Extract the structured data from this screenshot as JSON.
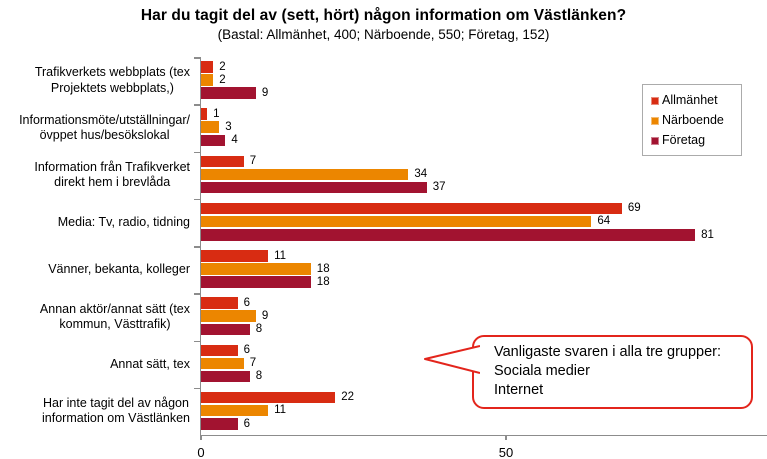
{
  "title": "Har du tagit del av (sett, hört) någon information om Västlänken?",
  "subtitle": "(Bastal: Allmänhet, 400; Närboende, 550; Företag, 152)",
  "colors": {
    "allmanhet": "#D82C12",
    "narboende": "#EC8600",
    "foretag": "#A21330",
    "axis": "#8C8C8C",
    "callout_border": "#E3251C"
  },
  "legend": {
    "items": [
      {
        "label": "Allmänhet",
        "color": "#D82C12"
      },
      {
        "label": "Närboende",
        "color": "#EC8600"
      },
      {
        "label": "Företag",
        "color": "#A21330"
      }
    ]
  },
  "callout": {
    "lines": [
      "Vanligaste svaren i alla tre grupper:",
      "Sociala medier",
      "Internet"
    ]
  },
  "chart_data": {
    "type": "bar",
    "orientation": "horizontal",
    "title": "Har du tagit del av (sett, hört) någon information om Västlänken?",
    "subtitle": "(Bastal: Allmänhet, 400; Närboende, 550; Företag, 152)",
    "categories": [
      "Trafikverkets webbplats (tex\nProjektets webbplats,)",
      "Informationsmöte/utställningar/\növppet hus/besökslokal",
      "Information från Trafikverket\ndirekt hem i brevlåda",
      "Media: Tv, radio, tidning",
      "Vänner, bekanta, kolleger",
      "Annan aktör/annat sätt (tex\nkommun, Västtrafik)",
      "Annat sätt, tex",
      "Har inte tagit del av någon\ninformation om Västlänken"
    ],
    "series": [
      {
        "name": "Allmänhet",
        "color": "#D82C12",
        "values": [
          2,
          1,
          7,
          69,
          11,
          6,
          6,
          22
        ]
      },
      {
        "name": "Närboende",
        "color": "#EC8600",
        "values": [
          2,
          3,
          34,
          64,
          18,
          9,
          7,
          11
        ]
      },
      {
        "name": "Företag",
        "color": "#A21330",
        "values": [
          9,
          4,
          37,
          81,
          18,
          8,
          8,
          6
        ]
      }
    ],
    "value_labels": true,
    "xlim": [
      0,
      92.8
    ],
    "xticks": [
      0,
      50
    ],
    "grid": false,
    "legend_position": "top-right-inside"
  }
}
